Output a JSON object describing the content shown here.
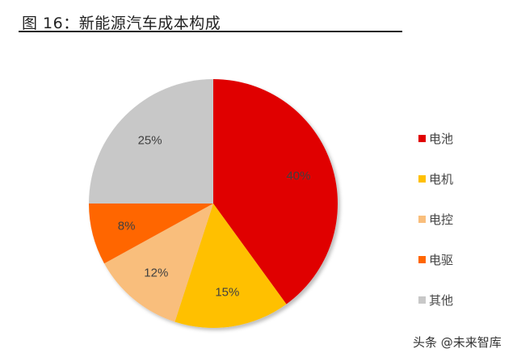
{
  "title": "图 16：新能源汽车成本构成",
  "watermark": "头条 @未来智库",
  "chart_data": {
    "type": "pie",
    "title": "图 16：新能源汽车成本构成",
    "categories": [
      "电池",
      "电机",
      "电控",
      "电驱",
      "其他"
    ],
    "values": [
      40,
      15,
      12,
      8,
      25
    ],
    "labels": [
      "40%",
      "15%",
      "12%",
      "8%",
      "25%"
    ],
    "colors": [
      "#E00000",
      "#FFC000",
      "#F9BE7C",
      "#FF6600",
      "#C8C8C8"
    ],
    "start_angle": "12 o'clock",
    "direction": "clockwise",
    "legend_position": "right"
  },
  "legend": [
    {
      "label": "电池",
      "color": "#E00000"
    },
    {
      "label": "电机",
      "color": "#FFC000"
    },
    {
      "label": "电控",
      "color": "#F9BE7C"
    },
    {
      "label": "电驱",
      "color": "#FF6600"
    },
    {
      "label": "其他",
      "color": "#C8C8C8"
    }
  ]
}
